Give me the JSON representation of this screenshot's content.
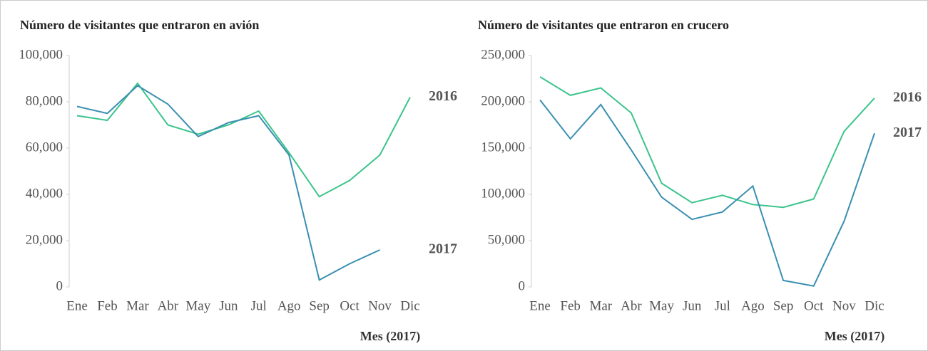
{
  "chart_data": [
    {
      "type": "line",
      "title": "Número de visitantes que entraron en avión",
      "x_label": "Mes (2017)",
      "categories": [
        "Ene",
        "Feb",
        "Mar",
        "Abr",
        "May",
        "Jun",
        "Jul",
        "Ago",
        "Sep",
        "Oct",
        "Nov",
        "Dic"
      ],
      "series": [
        {
          "name": "2016",
          "color": "#3cc48c",
          "values": [
            74000,
            72000,
            88000,
            70000,
            66000,
            70000,
            76000,
            58000,
            39000,
            46000,
            57000,
            82000
          ]
        },
        {
          "name": "2017",
          "color": "#3a8fb0",
          "values": [
            78000,
            75000,
            87000,
            79000,
            65000,
            71000,
            74000,
            57000,
            3000,
            10000,
            16000,
            null
          ]
        }
      ],
      "ylim": [
        0,
        100000
      ],
      "yticks": [
        0,
        {
          "value": 20000,
          "label": "20,000"
        },
        {
          "value": 40000,
          "label": "40,000"
        },
        {
          "value": 60000,
          "label": "60,000"
        },
        {
          "value": 80000,
          "label": "80,000"
        },
        {
          "value": 100000,
          "label": "100,000"
        }
      ]
    },
    {
      "type": "line",
      "title": "Número de visitantes que entraron en crucero",
      "x_label": "Mes (2017)",
      "categories": [
        "Ene",
        "Feb",
        "Mar",
        "Abr",
        "May",
        "Jun",
        "Jul",
        "Ago",
        "Sep",
        "Oct",
        "Nov",
        "Dic"
      ],
      "series": [
        {
          "name": "2016",
          "color": "#3cc48c",
          "values": [
            227000,
            207000,
            215000,
            188000,
            112000,
            91000,
            99000,
            89000,
            86000,
            95000,
            168000,
            204000
          ]
        },
        {
          "name": "2017",
          "color": "#3a8fb0",
          "values": [
            202000,
            160000,
            197000,
            148000,
            97000,
            73000,
            81000,
            109000,
            7000,
            1000,
            71000,
            166000
          ]
        }
      ],
      "ylim": [
        0,
        250000
      ],
      "yticks": [
        0,
        {
          "value": 50000,
          "label": "50,000"
        },
        {
          "value": 100000,
          "label": "100,000"
        },
        {
          "value": 150000,
          "label": "150,000"
        },
        {
          "value": 200000,
          "label": "200,000"
        },
        {
          "value": 250000,
          "label": "250,000"
        }
      ]
    }
  ]
}
